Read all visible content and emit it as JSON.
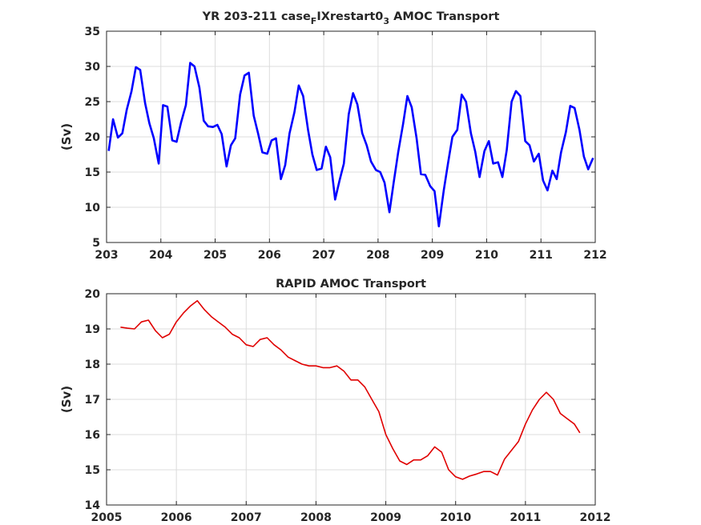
{
  "chart_data": [
    {
      "type": "line",
      "title": "YR 203-211 case",
      "title_sub1": "F",
      "title_mid": "IXrestart0",
      "title_sub2": "3",
      "title_end": " AMOC Transport",
      "xlabel": "",
      "ylabel": "(Sv)",
      "xlim": [
        203,
        212
      ],
      "ylim": [
        5,
        35
      ],
      "xticks": [
        "203",
        "204",
        "205",
        "206",
        "207",
        "208",
        "209",
        "210",
        "211",
        "212"
      ],
      "yticks": [
        "5",
        "10",
        "15",
        "20",
        "25",
        "30",
        "35"
      ],
      "grid": true,
      "color": "#0000ff",
      "series": [
        {
          "x": [
            203.04,
            203.12,
            203.21,
            203.29,
            203.37,
            203.46,
            203.54,
            203.62,
            203.71,
            203.79,
            203.87,
            203.96,
            204.04,
            204.12,
            204.21,
            204.29,
            204.37,
            204.46,
            204.54,
            204.62,
            204.71,
            204.79,
            204.87,
            204.96,
            205.04,
            205.12,
            205.21,
            205.29,
            205.37,
            205.46,
            205.54,
            205.62,
            205.71,
            205.79,
            205.87,
            205.96,
            206.04,
            206.12,
            206.21,
            206.29,
            206.37,
            206.46,
            206.54,
            206.62,
            206.71,
            206.79,
            206.87,
            206.96,
            207.04,
            207.12,
            207.21,
            207.29,
            207.37,
            207.46,
            207.54,
            207.62,
            207.71,
            207.79,
            207.87,
            207.96,
            208.04,
            208.12,
            208.21,
            208.29,
            208.37,
            208.46,
            208.54,
            208.62,
            208.71,
            208.79,
            208.87,
            208.96,
            209.04,
            209.12,
            209.21,
            209.29,
            209.37,
            209.46,
            209.54,
            209.62,
            209.71,
            209.79,
            209.87,
            209.96,
            210.04,
            210.12,
            210.21,
            210.29,
            210.37,
            210.46,
            210.54,
            210.62,
            210.71,
            210.79,
            210.87,
            210.96,
            211.04,
            211.12,
            211.21,
            211.29,
            211.37,
            211.46,
            211.54,
            211.62,
            211.71,
            211.79,
            211.87,
            211.96
          ],
          "y": [
            18.0,
            22.5,
            19.9,
            20.5,
            23.8,
            26.5,
            29.9,
            29.5,
            24.8,
            21.9,
            19.8,
            16.2,
            24.5,
            24.3,
            19.5,
            19.3,
            22.0,
            24.5,
            30.5,
            30.0,
            27.0,
            22.3,
            21.5,
            21.4,
            21.7,
            20.4,
            15.8,
            18.8,
            19.8,
            26.0,
            28.7,
            29.1,
            23.0,
            20.5,
            17.8,
            17.6,
            19.5,
            19.8,
            14.0,
            16.0,
            20.5,
            23.5,
            27.3,
            25.8,
            21.0,
            17.5,
            15.3,
            15.5,
            18.6,
            17.1,
            11.1,
            13.8,
            16.2,
            23.2,
            26.2,
            24.6,
            20.5,
            18.8,
            16.5,
            15.3,
            15.0,
            13.5,
            9.3,
            13.6,
            17.8,
            21.8,
            25.8,
            24.2,
            19.8,
            14.7,
            14.6,
            13.0,
            12.3,
            7.3,
            12.4,
            16.3,
            20.0,
            21.0,
            26.0,
            25.0,
            20.5,
            17.9,
            14.3,
            18.0,
            19.4,
            16.2,
            16.4,
            14.3,
            18.1,
            25.0,
            26.5,
            25.8,
            19.4,
            18.8,
            16.5,
            17.6,
            13.8,
            12.4,
            15.2,
            14.0,
            17.8,
            20.7,
            24.4,
            24.1,
            21.0,
            17.2,
            15.4,
            17.0
          ]
        }
      ]
    },
    {
      "type": "line",
      "title": "RAPID AMOC Transport",
      "xlabel": "",
      "ylabel": "(Sv)",
      "xlim": [
        2005,
        2012
      ],
      "ylim": [
        14,
        20
      ],
      "xticks": [
        "2005",
        "2006",
        "2007",
        "2008",
        "2009",
        "2010",
        "2011",
        "2012"
      ],
      "yticks": [
        "14",
        "15",
        "16",
        "17",
        "18",
        "19",
        "20"
      ],
      "grid": true,
      "color": "#e00000",
      "series": [
        {
          "x": [
            2005.2,
            2005.3,
            2005.4,
            2005.5,
            2005.6,
            2005.7,
            2005.8,
            2005.9,
            2006.0,
            2006.1,
            2006.2,
            2006.3,
            2006.4,
            2006.5,
            2006.6,
            2006.7,
            2006.8,
            2006.9,
            2007.0,
            2007.1,
            2007.2,
            2007.3,
            2007.4,
            2007.5,
            2007.6,
            2007.7,
            2007.8,
            2007.9,
            2008.0,
            2008.1,
            2008.2,
            2008.3,
            2008.4,
            2008.5,
            2008.6,
            2008.7,
            2008.8,
            2008.9,
            2009.0,
            2009.1,
            2009.2,
            2009.3,
            2009.4,
            2009.5,
            2009.6,
            2009.7,
            2009.8,
            2009.9,
            2010.0,
            2010.1,
            2010.2,
            2010.3,
            2010.4,
            2010.5,
            2010.6,
            2010.7,
            2010.8,
            2010.9,
            2011.0,
            2011.1,
            2011.2,
            2011.3,
            2011.4,
            2011.5,
            2011.6,
            2011.7,
            2011.78
          ],
          "y": [
            19.05,
            19.02,
            19.0,
            19.2,
            19.25,
            18.95,
            18.75,
            18.85,
            19.2,
            19.45,
            19.65,
            19.8,
            19.55,
            19.35,
            19.2,
            19.05,
            18.85,
            18.75,
            18.55,
            18.5,
            18.7,
            18.75,
            18.55,
            18.4,
            18.2,
            18.1,
            18.0,
            17.95,
            17.95,
            17.9,
            17.9,
            17.95,
            17.8,
            17.55,
            17.55,
            17.35,
            17.0,
            16.65,
            16.0,
            15.6,
            15.25,
            15.15,
            15.28,
            15.28,
            15.4,
            15.65,
            15.5,
            15.0,
            14.8,
            14.73,
            14.82,
            14.88,
            14.95,
            14.95,
            14.85,
            15.3,
            15.55,
            15.8,
            16.3,
            16.7,
            17.0,
            17.2,
            17.0,
            16.6,
            16.45,
            16.3,
            16.05
          ]
        }
      ]
    }
  ]
}
